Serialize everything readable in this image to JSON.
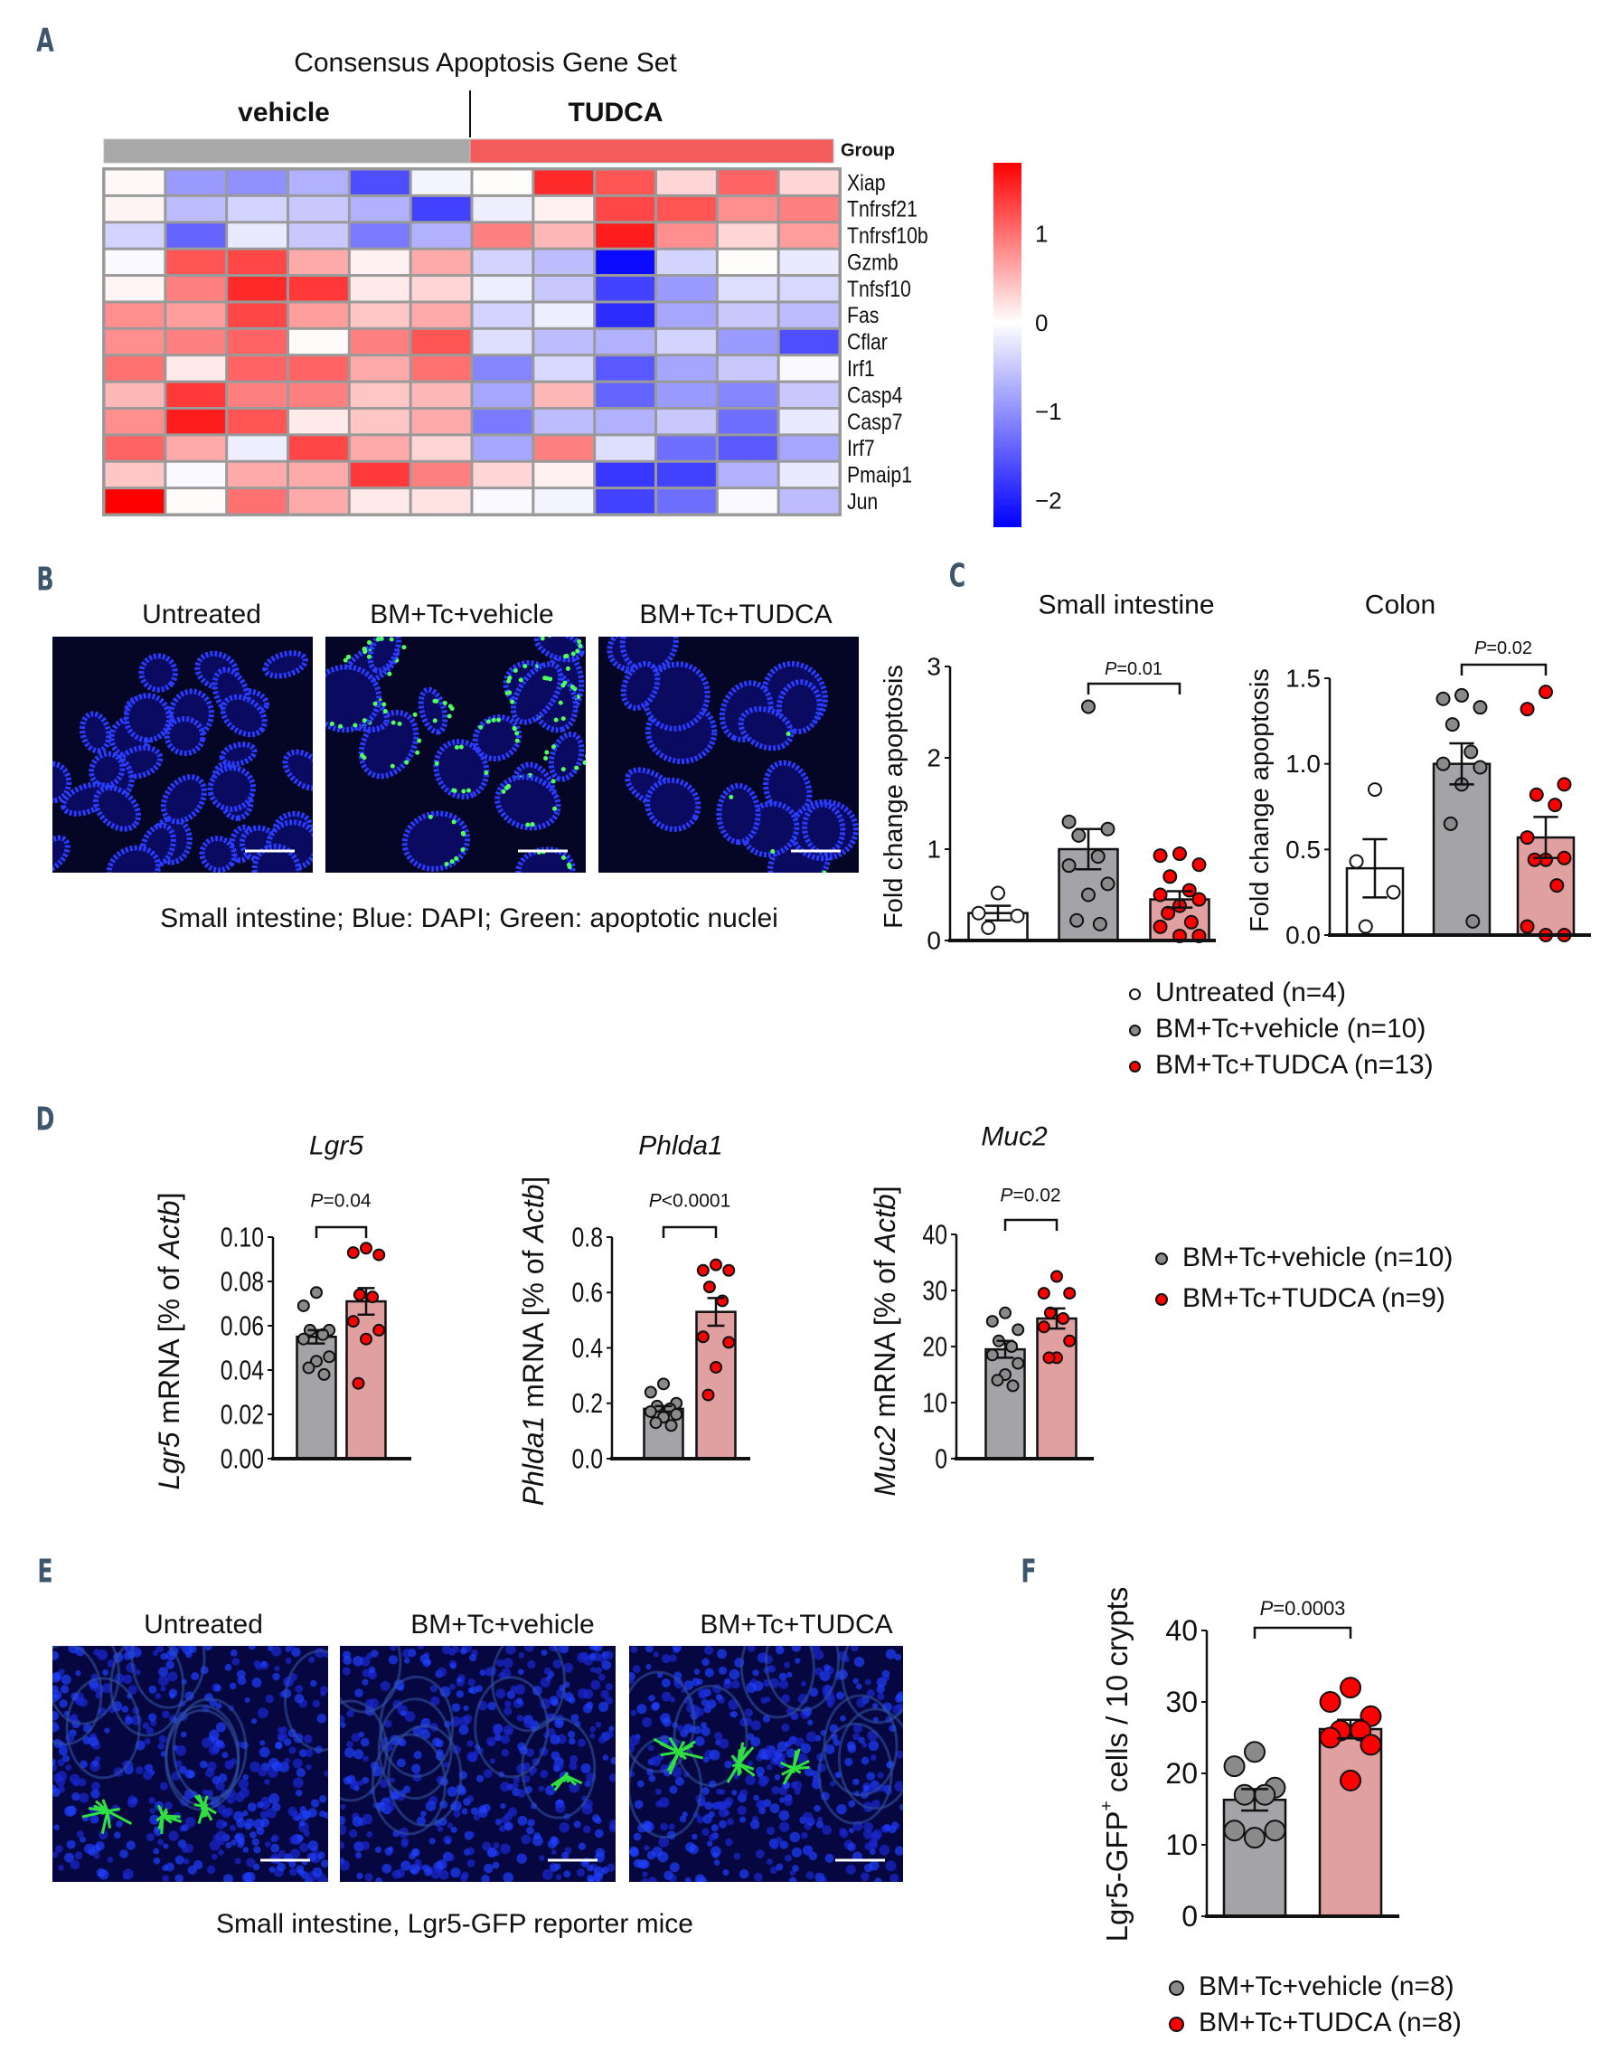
{
  "panel_letters": {
    "a": "A",
    "b": "B",
    "c": "C",
    "d": "D",
    "e": "E",
    "f": "F"
  },
  "heatmap": {
    "title": "Consensus Apoptosis Gene Set",
    "groups": [
      "vehicle",
      "TUDCA"
    ],
    "group_label": "Group",
    "group_colors": [
      "#a8a8a8",
      "#f45b5b"
    ],
    "genes": [
      "Xiap",
      "Tnfrsf21",
      "Tnfrsf10b",
      "Gzmb",
      "Tnfsf10",
      "Fas",
      "Cflar",
      "Irf1",
      "Casp4",
      "Casp7",
      "Irf7",
      "Pmaip1",
      "Jun"
    ],
    "values": [
      [
        0.05,
        -0.9,
        -1.0,
        -0.7,
        -1.6,
        -0.1,
        0.02,
        1.5,
        1.2,
        0.3,
        1.1,
        0.3
      ],
      [
        0.08,
        -0.6,
        -0.4,
        -0.5,
        -0.7,
        -1.7,
        -0.15,
        0.1,
        1.3,
        1.2,
        0.8,
        0.9
      ],
      [
        -0.4,
        -1.4,
        -0.2,
        -0.5,
        -1.2,
        -0.7,
        0.9,
        0.5,
        1.6,
        0.8,
        0.3,
        0.7
      ],
      [
        -0.05,
        1.2,
        1.3,
        0.6,
        0.1,
        0.6,
        -0.4,
        -0.6,
        -2.2,
        -0.4,
        0.02,
        -0.2
      ],
      [
        0.07,
        0.9,
        1.5,
        1.4,
        0.15,
        0.3,
        -0.15,
        -0.5,
        -1.7,
        -0.9,
        -0.3,
        -0.35
      ],
      [
        0.8,
        0.7,
        1.3,
        0.7,
        0.4,
        0.6,
        -0.4,
        -0.15,
        -1.9,
        -0.8,
        -0.5,
        -0.6
      ],
      [
        0.8,
        0.9,
        1.1,
        0.03,
        0.9,
        1.2,
        -0.3,
        -0.6,
        -0.7,
        -0.4,
        -0.9,
        -1.6
      ],
      [
        1.0,
        0.15,
        1.1,
        1.1,
        0.6,
        1.0,
        -1.1,
        -0.35,
        -1.5,
        -0.8,
        -0.5,
        -0.05
      ],
      [
        0.5,
        1.4,
        0.9,
        0.9,
        0.4,
        0.5,
        -0.8,
        0.5,
        -1.4,
        -0.9,
        -1.1,
        -0.5
      ],
      [
        0.8,
        1.6,
        1.2,
        0.15,
        0.4,
        0.6,
        -1.2,
        -0.6,
        -0.7,
        -0.5,
        -1.3,
        -0.2
      ],
      [
        1.1,
        0.6,
        -0.15,
        1.3,
        0.6,
        0.3,
        -0.8,
        0.9,
        -0.3,
        -1.3,
        -1.5,
        -0.8
      ],
      [
        0.4,
        -0.05,
        0.6,
        0.6,
        1.4,
        0.9,
        0.3,
        0.1,
        -1.8,
        -1.7,
        -0.7,
        -0.2
      ],
      [
        1.8,
        0.03,
        1.0,
        0.6,
        0.15,
        0.2,
        -0.05,
        -0.1,
        -1.7,
        -1.3,
        -0.05,
        -0.6
      ]
    ],
    "color_range": [
      -2.3,
      1.8
    ],
    "colorbar_ticks": [
      1,
      0,
      -1,
      -2
    ],
    "colorbar_tick_labels": [
      "1",
      "0",
      "−1",
      "−2"
    ],
    "low_color": "#0000ff",
    "mid_color": "#ffffff",
    "high_color": "#ff0000"
  },
  "panel_b": {
    "titles": [
      "Untreated",
      "BM+Tc+vehicle",
      "BM+Tc+TUDCA"
    ],
    "caption": "Small intestine; Blue: DAPI; Green: apoptotic nuclei"
  },
  "panel_e": {
    "titles": [
      "Untreated",
      "BM+Tc+vehicle",
      "BM+Tc+TUDCA"
    ],
    "caption": "Small intestine, Lgr5-GFP reporter mice"
  },
  "legend_c": [
    "Untreated (n=4)",
    "BM+Tc+vehicle (n=10)",
    "BM+Tc+TUDCA (n=13)"
  ],
  "legend_d": [
    "BM+Tc+vehicle (n=10)",
    "BM+Tc+TUDCA (n=9)"
  ],
  "legend_f": [
    "BM+Tc+vehicle (n=8)",
    "BM+Tc+TUDCA (n=8)"
  ],
  "group_colors": {
    "untreated_bar": "#ffffff",
    "vehicle_bar": "#a4a4a8",
    "tudca_bar": "#e0a0a0",
    "untreated_dot": "#ffffff",
    "vehicle_dot": "#8a8a8a",
    "tudca_dot": "#ff0000"
  },
  "chart_data": [
    {
      "id": "si",
      "type": "bar",
      "title": "Small intestine",
      "title_italic": false,
      "ylabel": [
        {
          "t": "Fold change apoptosis"
        }
      ],
      "ylim": [
        0,
        3
      ],
      "yticks": [
        0,
        1,
        2,
        3
      ],
      "ytick_labels": [
        "0",
        "1",
        "2",
        "3"
      ],
      "categories": [
        "Untreated",
        "BM+Tc+vehicle",
        "BM+Tc+TUDCA"
      ],
      "series": [
        {
          "name": "Untreated",
          "mean": 0.3,
          "sem": 0.08,
          "points": [
            0.52,
            0.3,
            0.27,
            0.14
          ]
        },
        {
          "name": "BM+Tc+vehicle",
          "mean": 1.0,
          "sem": 0.22,
          "points": [
            2.56,
            1.3,
            1.22,
            1.15,
            0.92,
            0.82,
            0.62,
            0.5,
            0.22,
            0.18
          ]
        },
        {
          "name": "BM+Tc+TUDCA",
          "mean": 0.45,
          "sem": 0.09,
          "points": [
            0.95,
            0.93,
            0.83,
            0.7,
            0.55,
            0.5,
            0.45,
            0.38,
            0.3,
            0.2,
            0.15,
            0.05,
            0.05
          ]
        }
      ],
      "pvalue": {
        "label": "P=0.01",
        "between": [
          1,
          2
        ]
      }
    },
    {
      "id": "colon",
      "type": "bar",
      "title": "Colon",
      "title_italic": false,
      "ylabel": [
        {
          "t": "Fold change apoptosis"
        }
      ],
      "ylim": [
        0,
        1.5
      ],
      "yticks": [
        0,
        0.5,
        1,
        1.5
      ],
      "ytick_labels": [
        "0.0",
        "0.5",
        "1.0",
        "1.5"
      ],
      "categories": [
        "Untreated",
        "BM+Tc+vehicle",
        "BM+Tc+TUDCA"
      ],
      "series": [
        {
          "name": "Untreated",
          "mean": 0.39,
          "sem": 0.17,
          "points": [
            0.85,
            0.43,
            0.25,
            0.05
          ]
        },
        {
          "name": "BM+Tc+vehicle",
          "mean": 1.0,
          "sem": 0.12,
          "points": [
            1.4,
            1.38,
            1.33,
            1.23,
            1.07,
            1.0,
            0.98,
            0.88,
            0.65,
            0.08
          ]
        },
        {
          "name": "BM+Tc+TUDCA",
          "mean": 0.57,
          "sem": 0.12,
          "points": [
            1.42,
            1.32,
            0.88,
            0.82,
            0.76,
            0.57,
            0.45,
            0.44,
            0.44,
            0.29,
            0.05,
            0.0,
            0.0
          ]
        }
      ],
      "pvalue": {
        "label": "P=0.02",
        "between": [
          1,
          2
        ]
      }
    },
    {
      "id": "lgr5",
      "type": "bar",
      "title": "Lgr5",
      "title_italic": true,
      "ylabel": [
        {
          "t": "Lgr5",
          "i": true
        },
        {
          "t": " mRNA [% of "
        },
        {
          "t": "Actb",
          "i": true
        },
        {
          "t": "]"
        }
      ],
      "ylim": [
        0,
        0.1
      ],
      "yticks": [
        0,
        0.02,
        0.04,
        0.06,
        0.08,
        0.1
      ],
      "ytick_labels": [
        "0.00",
        "0.02",
        "0.04",
        "0.06",
        "0.08",
        "0.10"
      ],
      "categories": [
        "BM+Tc+vehicle",
        "BM+Tc+TUDCA"
      ],
      "series": [
        {
          "name": "BM+Tc+vehicle",
          "mean": 0.055,
          "sem": 0.003,
          "points": [
            0.075,
            0.069,
            0.058,
            0.058,
            0.056,
            0.054,
            0.046,
            0.044,
            0.041,
            0.038
          ]
        },
        {
          "name": "BM+Tc+TUDCA",
          "mean": 0.071,
          "sem": 0.006,
          "points": [
            0.095,
            0.093,
            0.092,
            0.074,
            0.073,
            0.062,
            0.058,
            0.054,
            0.034
          ]
        }
      ],
      "pvalue": {
        "label": "P=0.04",
        "between": [
          0,
          1
        ]
      }
    },
    {
      "id": "phlda1",
      "type": "bar",
      "title": "Phlda1",
      "title_italic": true,
      "ylabel": [
        {
          "t": "Phlda1",
          "i": true
        },
        {
          "t": " mRNA [% of "
        },
        {
          "t": "Actb",
          "i": true
        },
        {
          "t": "]"
        }
      ],
      "ylim": [
        0,
        0.8
      ],
      "yticks": [
        0,
        0.2,
        0.4,
        0.6,
        0.8
      ],
      "ytick_labels": [
        "0.0",
        "0.2",
        "0.4",
        "0.6",
        "0.8"
      ],
      "categories": [
        "BM+Tc+vehicle",
        "BM+Tc+TUDCA"
      ],
      "series": [
        {
          "name": "BM+Tc+vehicle",
          "mean": 0.18,
          "sem": 0.01,
          "points": [
            0.27,
            0.24,
            0.2,
            0.19,
            0.18,
            0.17,
            0.16,
            0.15,
            0.13,
            0.12
          ]
        },
        {
          "name": "BM+Tc+TUDCA",
          "mean": 0.53,
          "sem": 0.05,
          "points": [
            0.7,
            0.68,
            0.68,
            0.62,
            0.57,
            0.44,
            0.42,
            0.33,
            0.23
          ]
        }
      ],
      "pvalue": {
        "label": "P<0.0001",
        "between": [
          0,
          1
        ]
      }
    },
    {
      "id": "muc2",
      "type": "bar",
      "title": "Muc2",
      "title_italic": true,
      "ylabel": [
        {
          "t": "Muc2",
          "i": true
        },
        {
          "t": " mRNA [% of "
        },
        {
          "t": "Actb",
          "i": true
        },
        {
          "t": "]"
        }
      ],
      "ylim": [
        0,
        40
      ],
      "yticks": [
        0,
        10,
        20,
        30,
        40
      ],
      "ytick_labels": [
        "0",
        "10",
        "20",
        "30",
        "40"
      ],
      "categories": [
        "BM+Tc+vehicle",
        "BM+Tc+TUDCA"
      ],
      "series": [
        {
          "name": "BM+Tc+vehicle",
          "mean": 19.5,
          "sem": 1.5,
          "points": [
            26,
            24.5,
            23,
            21,
            20,
            18.5,
            17,
            15,
            14,
            13
          ]
        },
        {
          "name": "BM+Tc+TUDCA",
          "mean": 25,
          "sem": 1.8,
          "points": [
            32.5,
            29.5,
            29.5,
            26,
            25,
            23.5,
            21,
            18,
            18
          ]
        }
      ],
      "pvalue": {
        "label": "P=0.02",
        "between": [
          0,
          1
        ]
      }
    },
    {
      "id": "f",
      "type": "bar",
      "title": "",
      "title_italic": false,
      "ylabel": [
        {
          "t": "Lgr5-GFP"
        },
        {
          "t": "+",
          "sup": true
        },
        {
          "t": " cells / 10 crypts"
        }
      ],
      "ylim": [
        0,
        40
      ],
      "yticks": [
        0,
        10,
        20,
        30,
        40
      ],
      "ytick_labels": [
        "0",
        "10",
        "20",
        "30",
        "40"
      ],
      "categories": [
        "BM+Tc+vehicle",
        "BM+Tc+TUDCA"
      ],
      "series": [
        {
          "name": "BM+Tc+vehicle",
          "mean": 16.3,
          "sem": 1.5,
          "points": [
            23,
            21,
            18,
            17,
            17,
            12,
            12,
            11
          ]
        },
        {
          "name": "BM+Tc+TUDCA",
          "mean": 26.2,
          "sem": 1.3,
          "points": [
            32,
            30,
            28,
            26,
            26,
            25,
            24,
            19
          ]
        }
      ],
      "pvalue": {
        "label": "P=0.0003",
        "between": [
          0,
          1
        ]
      }
    }
  ]
}
